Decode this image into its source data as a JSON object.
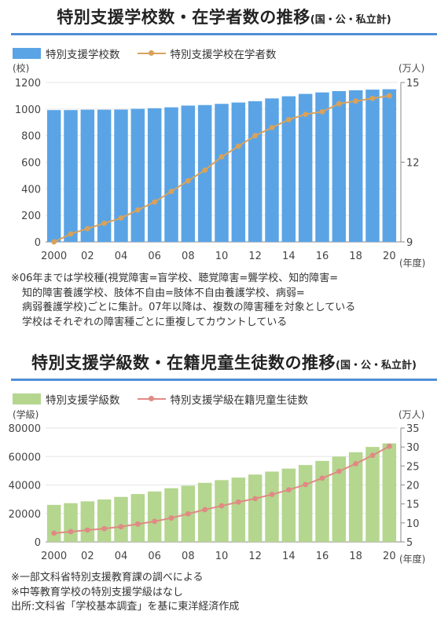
{
  "chart1": {
    "title_main": "特別支援学校数・在学者数の推移",
    "title_sub": "(国・公・私立計)",
    "legend_bar": "特別支援学校数",
    "legend_line": "特別支援学校在学者数",
    "left_unit": "(校)",
    "right_unit": "(万人)",
    "x_unit": "(年度)",
    "bar_color": "#5aa4e6",
    "line_color": "#d9a25a",
    "notes": [
      "※06年までは学校種(視覚障害=盲学校、聴覚障害=聾学校、知的障害=",
      "知的障害養護学校、肢体不自由=肢体不自由養護学校、病弱=",
      "病弱養護学校)ごとに集計。07年以降は、複数の障害種を対象としている",
      "学校はそれぞれの障害種ごとに重複してカウントしている"
    ]
  },
  "chart2": {
    "title_main": "特別支援学級数・在籍児童生徒数の推移",
    "title_sub": "(国・公・私立計)",
    "legend_bar": "特別支援学級数",
    "legend_line": "特別支援学級在籍児童生徒数",
    "left_unit": "(学級)",
    "right_unit": "(万人)",
    "x_unit": "(年度)",
    "bar_color": "#b4d68f",
    "line_color": "#e08a84",
    "notes": [
      "※一部文科省特別支援教育課の調べによる",
      "※中等教育学校の特別支援学級はなし",
      "出所:文科省「学校基本調査」を基に東洋経済作成"
    ]
  },
  "chart_data": [
    {
      "type": "bar",
      "title": "特別支援学校数・在学者数の推移",
      "subtitle": "(国・公・私立計)",
      "categories": [
        "2000",
        "01",
        "02",
        "03",
        "04",
        "05",
        "06",
        "07",
        "08",
        "09",
        "10",
        "11",
        "12",
        "13",
        "14",
        "15",
        "16",
        "17",
        "18",
        "19",
        "20"
      ],
      "x_tick_labels": [
        "2000",
        "",
        "02",
        "",
        "04",
        "",
        "06",
        "",
        "08",
        "",
        "10",
        "",
        "12",
        "",
        "14",
        "",
        "16",
        "",
        "18",
        "",
        "20"
      ],
      "x_unit": "(年度)",
      "series": [
        {
          "name": "特別支援学校数",
          "type": "bar",
          "axis": "left",
          "values": [
            992,
            992,
            995,
            995,
            996,
            1002,
            1006,
            1013,
            1026,
            1030,
            1039,
            1049,
            1059,
            1080,
            1096,
            1114,
            1125,
            1135,
            1141,
            1146,
            1149
          ]
        },
        {
          "name": "特別支援学校在学者数",
          "type": "line",
          "axis": "right",
          "values": [
            9.0,
            9.3,
            9.5,
            9.7,
            9.9,
            10.2,
            10.5,
            10.9,
            11.3,
            11.7,
            12.2,
            12.6,
            13.0,
            13.3,
            13.6,
            13.8,
            13.9,
            14.2,
            14.3,
            14.4,
            14.5
          ]
        }
      ],
      "left_axis": {
        "unit": "(校)",
        "ylim": [
          0,
          1200
        ],
        "ticks": [
          0,
          200,
          400,
          600,
          800,
          1000,
          1200
        ]
      },
      "right_axis": {
        "unit": "(万人)",
        "ylim": [
          9,
          15
        ],
        "ticks": [
          9,
          12,
          15
        ]
      },
      "legend": "top-left"
    },
    {
      "type": "bar",
      "title": "特別支援学級数・在籍児童生徒数の推移",
      "subtitle": "(国・公・私立計)",
      "categories": [
        "2000",
        "01",
        "02",
        "03",
        "04",
        "05",
        "06",
        "07",
        "08",
        "09",
        "10",
        "11",
        "12",
        "13",
        "14",
        "15",
        "16",
        "17",
        "18",
        "19",
        "20"
      ],
      "x_tick_labels": [
        "2000",
        "",
        "02",
        "",
        "04",
        "",
        "06",
        "",
        "08",
        "",
        "10",
        "",
        "12",
        "",
        "14",
        "",
        "16",
        "",
        "18",
        "",
        "20"
      ],
      "x_unit": "(年度)",
      "series": [
        {
          "name": "特別支援学級数",
          "type": "bar",
          "axis": "left",
          "values": [
            26000,
            27200,
            28500,
            29800,
            31600,
            33600,
            35400,
            37700,
            39500,
            41500,
            43400,
            45200,
            47300,
            49400,
            51500,
            54000,
            56900,
            59900,
            63000,
            66700,
            69200
          ]
        },
        {
          "name": "特別支援学級在籍児童生徒数",
          "type": "line",
          "axis": "right",
          "values": [
            7.3,
            7.7,
            8.1,
            8.5,
            9.0,
            9.7,
            10.4,
            11.3,
            12.4,
            13.5,
            14.5,
            15.5,
            16.4,
            17.5,
            18.7,
            20.1,
            21.8,
            23.6,
            25.6,
            27.8,
            30.2
          ]
        }
      ],
      "left_axis": {
        "unit": "(学級)",
        "ylim": [
          0,
          80000
        ],
        "ticks": [
          0,
          20000,
          40000,
          60000,
          80000
        ]
      },
      "right_axis": {
        "unit": "(万人)",
        "ylim": [
          5,
          35
        ],
        "ticks": [
          5,
          10,
          15,
          20,
          25,
          30,
          35
        ]
      },
      "legend": "top-left"
    }
  ]
}
